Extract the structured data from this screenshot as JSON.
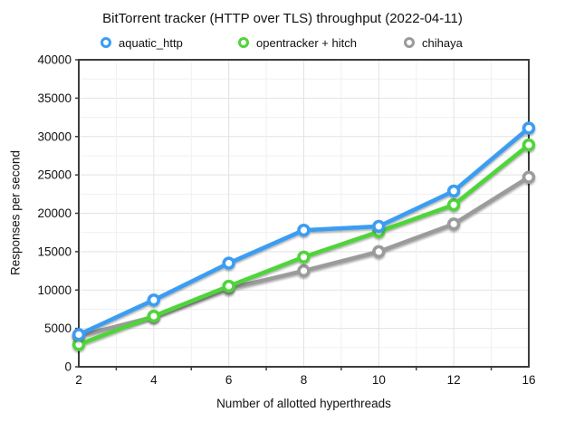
{
  "page": {
    "background": "#ffffff"
  },
  "chart_data": {
    "type": "line",
    "title": "BitTorrent tracker (HTTP over TLS) throughput (2022-04-11)",
    "xlabel": "Number of allotted hyperthreads",
    "ylabel": "Responses per second",
    "categories": [
      "2",
      "4",
      "6",
      "8",
      "10",
      "12",
      "16"
    ],
    "series": [
      {
        "name": "aquatic_http",
        "color": "#3B9DF2",
        "values": [
          4200,
          8700,
          13500,
          17800,
          18300,
          22900,
          31100
        ]
      },
      {
        "name": "opentracker + hitch",
        "color": "#50D43B",
        "values": [
          2900,
          6600,
          10500,
          14300,
          17600,
          21100,
          28900
        ]
      },
      {
        "name": "chihaya",
        "color": "#9B9B9B",
        "values": [
          4000,
          6500,
          10200,
          12500,
          15000,
          18600,
          24700
        ]
      }
    ],
    "ylim": [
      0,
      40000
    ],
    "y_major_step": 5000,
    "y_minor_step": 2500,
    "grid": true,
    "legend_position": "top",
    "marker": "ring",
    "colors": {
      "grid_major": "#E2E2E2",
      "grid_minor": "#F0F0F0",
      "axis_border": "#3D3D3D",
      "text": "#111111"
    }
  }
}
